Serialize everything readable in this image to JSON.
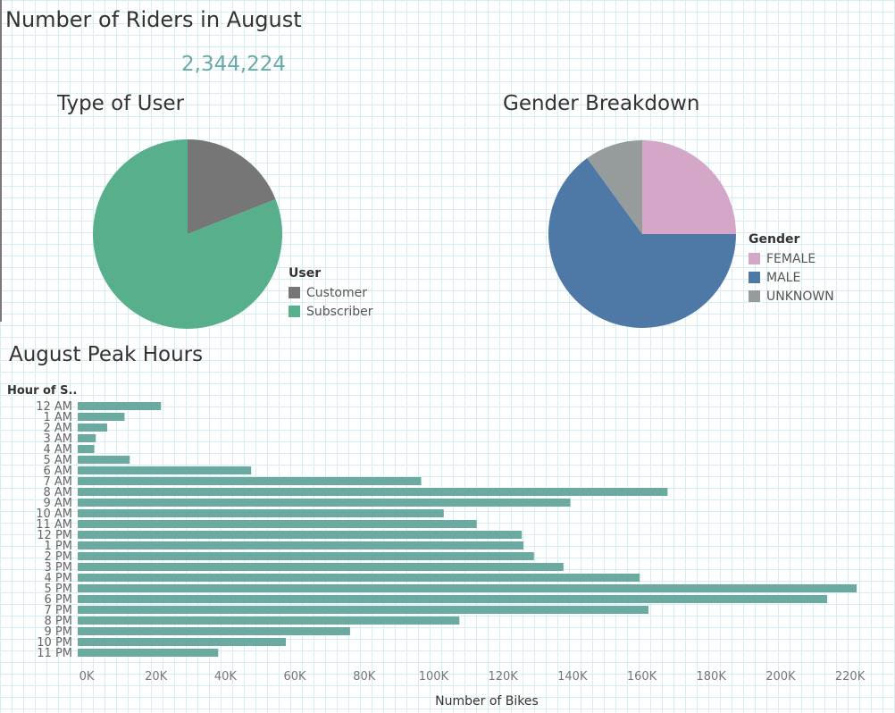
{
  "header": {
    "title": "Number of Riders in August",
    "total_riders": "2,344,224"
  },
  "chart_data": [
    {
      "type": "pie",
      "title": "Type of User",
      "legend_title": "User",
      "legend_position": "bottom-right",
      "slices": [
        {
          "label": "Customer",
          "value": 19,
          "color": "#767676"
        },
        {
          "label": "Subscriber",
          "value": 81,
          "color": "#57b08b"
        }
      ]
    },
    {
      "type": "pie",
      "title": "Gender Breakdown",
      "legend_title": "Gender",
      "legend_position": "right",
      "slices": [
        {
          "label": "FEMALE",
          "value": 25,
          "color": "#d4a6c8"
        },
        {
          "label": "MALE",
          "value": 65,
          "color": "#4e79a7"
        },
        {
          "label": "UNKNOWN",
          "value": 10,
          "color": "#969b9b"
        }
      ]
    },
    {
      "type": "bar",
      "orientation": "horizontal",
      "title": "August Peak Hours",
      "ylabel": "Hour of S..",
      "xlabel": "Number of Bikes",
      "xlim": [
        0,
        225000
      ],
      "xticks": [
        0,
        20000,
        40000,
        60000,
        80000,
        100000,
        120000,
        140000,
        160000,
        180000,
        200000,
        220000
      ],
      "xtick_labels": [
        "0K",
        "20K",
        "40K",
        "60K",
        "80K",
        "100K",
        "120K",
        "140K",
        "160K",
        "180K",
        "200K",
        "220K"
      ],
      "bar_color": "#6aaaa0",
      "categories": [
        "12 AM",
        "1 AM",
        "2 AM",
        "3 AM",
        "4 AM",
        "5 AM",
        "6 AM",
        "7 AM",
        "8 AM",
        "9 AM",
        "10 AM",
        "11 AM",
        "12 PM",
        "1 PM",
        "2 PM",
        "3 PM",
        "4 PM",
        "5 PM",
        "6 PM",
        "7 PM",
        "8 PM",
        "9 PM",
        "10 PM",
        "11 PM"
      ],
      "values": [
        24000,
        13500,
        8500,
        5200,
        4800,
        15000,
        50000,
        99000,
        170000,
        142000,
        105500,
        115000,
        128000,
        128500,
        131500,
        140000,
        162000,
        224500,
        216000,
        164500,
        110000,
        78500,
        60000,
        40500
      ],
      "grid": true
    }
  ]
}
